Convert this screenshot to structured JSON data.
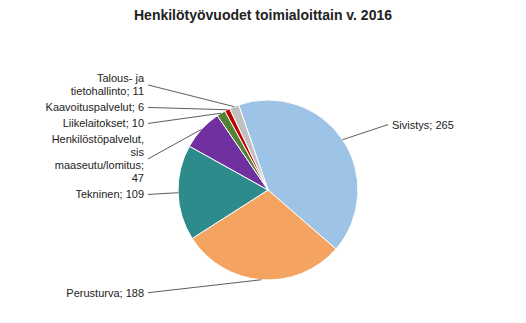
{
  "chart_data": {
    "type": "pie",
    "title": "Henkilötyövuodet toimialoittain v. 2016",
    "categories": [
      "Sivistys; 265",
      "Perusturva; 188",
      "Tekninen; 109",
      "Henkilöstöpalvelut,\nsis\nmaaseutu/lomitus;\n47",
      "Liikelaitokset; 10",
      "Kaavoituspalvelut; 6",
      "Talous- ja\ntietohallinto; 11"
    ],
    "values": [
      265,
      188,
      109,
      47,
      10,
      6,
      11
    ],
    "colors": [
      "#9dc3e6",
      "#f4a460",
      "#2e8b8b",
      "#7030a0",
      "#548235",
      "#c00000",
      "#c0c0c0"
    ],
    "data_labels": true,
    "value_labels": [
      "Sivistys; 265",
      "Perusturva; 188",
      "Tekninen; 109",
      "Henkilöstöpalvelut,\nsis\nmaaseutu/lomitus;\n47",
      "Liikelaitokset; 10",
      "Kaavoituspalvelut; 6",
      "Talous- ja\ntietohallinto; 11"
    ]
  }
}
